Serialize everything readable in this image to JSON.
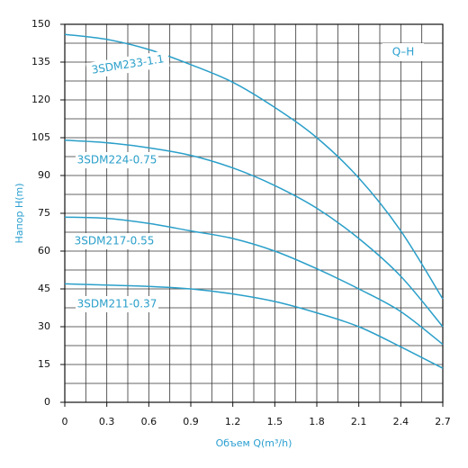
{
  "chart_data": {
    "type": "line",
    "x_label": "Объем Q(m³/h)",
    "y_label": "Напор H(m)",
    "annotation": "Q–H",
    "x": [
      0,
      0.3,
      0.6,
      0.9,
      1.2,
      1.5,
      1.8,
      2.1,
      2.4,
      2.7
    ],
    "series": [
      {
        "name": "3SDM233-1.1",
        "color": "#2a9fc9",
        "values": [
          146,
          144,
          140,
          134,
          127,
          117,
          105,
          89,
          68,
          41
        ]
      },
      {
        "name": "3SDM224-0.75",
        "color": "#2a9fc9",
        "values": [
          104,
          103,
          101,
          98,
          93,
          86,
          77,
          65,
          50,
          30
        ]
      },
      {
        "name": "3SDM217-0.55",
        "color": "#2a9fc9",
        "values": [
          73.5,
          73,
          71,
          68,
          65,
          60,
          53,
          45,
          36,
          23
        ]
      },
      {
        "name": "3SDM211-0.37",
        "color": "#2a9fc9",
        "values": [
          47,
          46.5,
          46,
          45,
          43,
          40,
          35.5,
          30,
          22,
          13.5
        ]
      }
    ],
    "xlim": [
      0,
      2.7
    ],
    "xticks": [
      0,
      0.3,
      0.6,
      0.9,
      1.2,
      1.5,
      1.8,
      2.1,
      2.4,
      2.7
    ],
    "ylim": [
      0,
      150
    ],
    "yticks": [
      0,
      15,
      30,
      45,
      60,
      75,
      90,
      105,
      120,
      135,
      150
    ],
    "grid": true
  }
}
